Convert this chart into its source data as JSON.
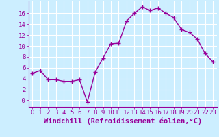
{
  "x": [
    0,
    1,
    2,
    3,
    4,
    5,
    6,
    7,
    8,
    9,
    10,
    11,
    12,
    13,
    14,
    15,
    16,
    17,
    18,
    19,
    20,
    21,
    22,
    23
  ],
  "y": [
    5.0,
    5.5,
    3.8,
    3.8,
    3.5,
    3.5,
    3.8,
    -0.3,
    5.2,
    7.8,
    10.4,
    10.5,
    14.6,
    16.0,
    17.2,
    16.5,
    17.0,
    16.0,
    15.2,
    13.0,
    12.5,
    11.3,
    8.6,
    7.1
  ],
  "line_color": "#990099",
  "marker": "+",
  "markersize": 4,
  "linewidth": 1.0,
  "bg_color": "#cceeff",
  "grid_color": "#ffffff",
  "xlabel": "Windchill (Refroidissement éolien,°C)",
  "xlabel_fontsize": 7.5,
  "tick_fontsize": 6.5,
  "yticks": [
    0,
    2,
    4,
    6,
    8,
    10,
    12,
    14,
    16
  ],
  "ytick_labels": [
    "-0",
    "2",
    "4",
    "6",
    "8",
    "10",
    "12",
    "14",
    "16"
  ],
  "xlim": [
    -0.5,
    23.5
  ],
  "ylim": [
    -1.2,
    18.2
  ]
}
